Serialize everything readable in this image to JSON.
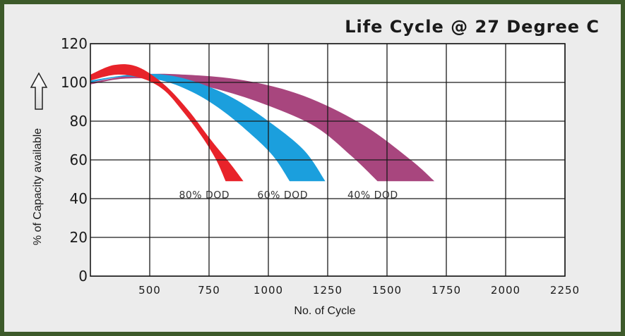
{
  "chart_data": {
    "type": "area",
    "title": "Life Cycle @ 27 Degree C",
    "xlabel": "No. of Cycle",
    "ylabel": "% of Capacity available",
    "xlim": [
      250,
      2250
    ],
    "ylim": [
      0,
      120
    ],
    "xticks": [
      "500",
      "750",
      "1000",
      "1250",
      "1500",
      "1750",
      "2000",
      "2250"
    ],
    "yticks": [
      "0",
      "20",
      "40",
      "60",
      "80",
      "100",
      "120"
    ],
    "grid": true,
    "series": [
      {
        "name": "40% DOD",
        "color": "#a8467e",
        "upper": [
          [
            250,
            100
          ],
          [
            450,
            104
          ],
          [
            650,
            104
          ],
          [
            900,
            101
          ],
          [
            1150,
            93
          ],
          [
            1400,
            78
          ],
          [
            1600,
            60
          ],
          [
            1700,
            49
          ]
        ],
        "lower": [
          [
            1460,
            49
          ],
          [
            1350,
            62
          ],
          [
            1200,
            77
          ],
          [
            1000,
            88
          ],
          [
            800,
            96
          ],
          [
            600,
            101
          ],
          [
            400,
            102
          ],
          [
            250,
            99
          ]
        ]
      },
      {
        "name": "60% DOD",
        "color": "#1b9fdd",
        "upper": [
          [
            250,
            101
          ],
          [
            420,
            104
          ],
          [
            560,
            104
          ],
          [
            700,
            100
          ],
          [
            850,
            92
          ],
          [
            1000,
            80
          ],
          [
            1150,
            65
          ],
          [
            1240,
            49
          ]
        ],
        "lower": [
          [
            1090,
            49
          ],
          [
            1020,
            62
          ],
          [
            920,
            74
          ],
          [
            800,
            86
          ],
          [
            680,
            95
          ],
          [
            550,
            101
          ],
          [
            400,
            103
          ],
          [
            250,
            100
          ]
        ]
      },
      {
        "name": "80% DOD",
        "color": "#e8232a",
        "upper": [
          [
            250,
            104
          ],
          [
            350,
            109
          ],
          [
            450,
            108
          ],
          [
            560,
            99
          ],
          [
            660,
            86
          ],
          [
            760,
            70
          ],
          [
            840,
            58
          ],
          [
            895,
            49
          ]
        ],
        "lower": [
          [
            820,
            49
          ],
          [
            780,
            60
          ],
          [
            720,
            72
          ],
          [
            640,
            85
          ],
          [
            560,
            96
          ],
          [
            470,
            102
          ],
          [
            360,
            104
          ],
          [
            250,
            101
          ]
        ]
      }
    ],
    "band_labels": [
      {
        "text": "80% DOD",
        "x": 730,
        "y": 42
      },
      {
        "text": "60% DOD",
        "x": 1060,
        "y": 42
      },
      {
        "text": "40% DOD",
        "x": 1440,
        "y": 42
      }
    ]
  }
}
